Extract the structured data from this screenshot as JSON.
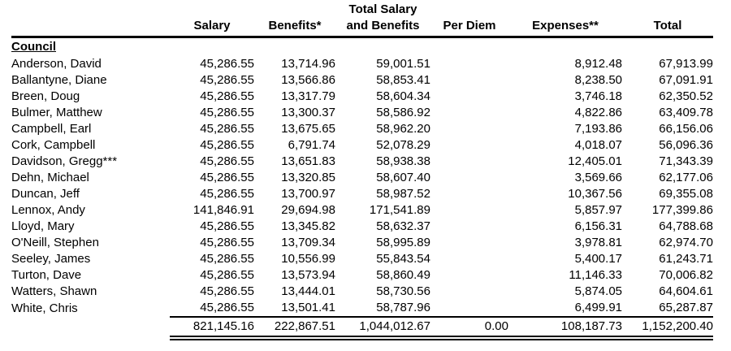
{
  "table": {
    "header": {
      "name": "",
      "salary": "Salary",
      "benefits": "Benefits*",
      "total_salary_benefits_line1": "Total Salary",
      "total_salary_benefits_line2": "and Benefits",
      "per_diem": "Per Diem",
      "expenses": "Expenses**",
      "total": "Total"
    },
    "group_label": "Council",
    "rows": [
      {
        "name": "Anderson, David",
        "salary": "45,286.55",
        "benefits": "13,714.96",
        "tsb": "59,001.51",
        "per_diem": "",
        "expenses": "8,912.48",
        "total": "67,913.99"
      },
      {
        "name": "Ballantyne, Diane",
        "salary": "45,286.55",
        "benefits": "13,566.86",
        "tsb": "58,853.41",
        "per_diem": "",
        "expenses": "8,238.50",
        "total": "67,091.91"
      },
      {
        "name": "Breen, Doug",
        "salary": "45,286.55",
        "benefits": "13,317.79",
        "tsb": "58,604.34",
        "per_diem": "",
        "expenses": "3,746.18",
        "total": "62,350.52"
      },
      {
        "name": "Bulmer, Matthew",
        "salary": "45,286.55",
        "benefits": "13,300.37",
        "tsb": "58,586.92",
        "per_diem": "",
        "expenses": "4,822.86",
        "total": "63,409.78"
      },
      {
        "name": "Campbell, Earl",
        "salary": "45,286.55",
        "benefits": "13,675.65",
        "tsb": "58,962.20",
        "per_diem": "",
        "expenses": "7,193.86",
        "total": "66,156.06"
      },
      {
        "name": "Cork, Campbell",
        "salary": "45,286.55",
        "benefits": "6,791.74",
        "tsb": "52,078.29",
        "per_diem": "",
        "expenses": "4,018.07",
        "total": "56,096.36"
      },
      {
        "name": "Davidson, Gregg***",
        "salary": "45,286.55",
        "benefits": "13,651.83",
        "tsb": "58,938.38",
        "per_diem": "",
        "expenses": "12,405.01",
        "total": "71,343.39"
      },
      {
        "name": "Dehn, Michael",
        "salary": "45,286.55",
        "benefits": "13,320.85",
        "tsb": "58,607.40",
        "per_diem": "",
        "expenses": "3,569.66",
        "total": "62,177.06"
      },
      {
        "name": "Duncan, Jeff",
        "salary": "45,286.55",
        "benefits": "13,700.97",
        "tsb": "58,987.52",
        "per_diem": "",
        "expenses": "10,367.56",
        "total": "69,355.08"
      },
      {
        "name": "Lennox, Andy",
        "salary": "141,846.91",
        "benefits": "29,694.98",
        "tsb": "171,541.89",
        "per_diem": "",
        "expenses": "5,857.97",
        "total": "177,399.86"
      },
      {
        "name": "Lloyd, Mary",
        "salary": "45,286.55",
        "benefits": "13,345.82",
        "tsb": "58,632.37",
        "per_diem": "",
        "expenses": "6,156.31",
        "total": "64,788.68"
      },
      {
        "name": "O'Neill, Stephen",
        "salary": "45,286.55",
        "benefits": "13,709.34",
        "tsb": "58,995.89",
        "per_diem": "",
        "expenses": "3,978.81",
        "total": "62,974.70"
      },
      {
        "name": "Seeley, James",
        "salary": "45,286.55",
        "benefits": "10,556.99",
        "tsb": "55,843.54",
        "per_diem": "",
        "expenses": "5,400.17",
        "total": "61,243.71"
      },
      {
        "name": "Turton, Dave",
        "salary": "45,286.55",
        "benefits": "13,573.94",
        "tsb": "58,860.49",
        "per_diem": "",
        "expenses": "11,146.33",
        "total": "70,006.82"
      },
      {
        "name": "Watters, Shawn",
        "salary": "45,286.55",
        "benefits": "13,444.01",
        "tsb": "58,730.56",
        "per_diem": "",
        "expenses": "5,874.05",
        "total": "64,604.61"
      },
      {
        "name": "White, Chris",
        "salary": "45,286.55",
        "benefits": "13,501.41",
        "tsb": "58,787.96",
        "per_diem": "",
        "expenses": "6,499.91",
        "total": "65,287.87"
      }
    ],
    "totals": {
      "name": "",
      "salary": "821,145.16",
      "benefits": "222,867.51",
      "tsb": "1,044,012.67",
      "per_diem": "0.00",
      "expenses": "108,187.73",
      "total": "1,152,200.40"
    }
  }
}
